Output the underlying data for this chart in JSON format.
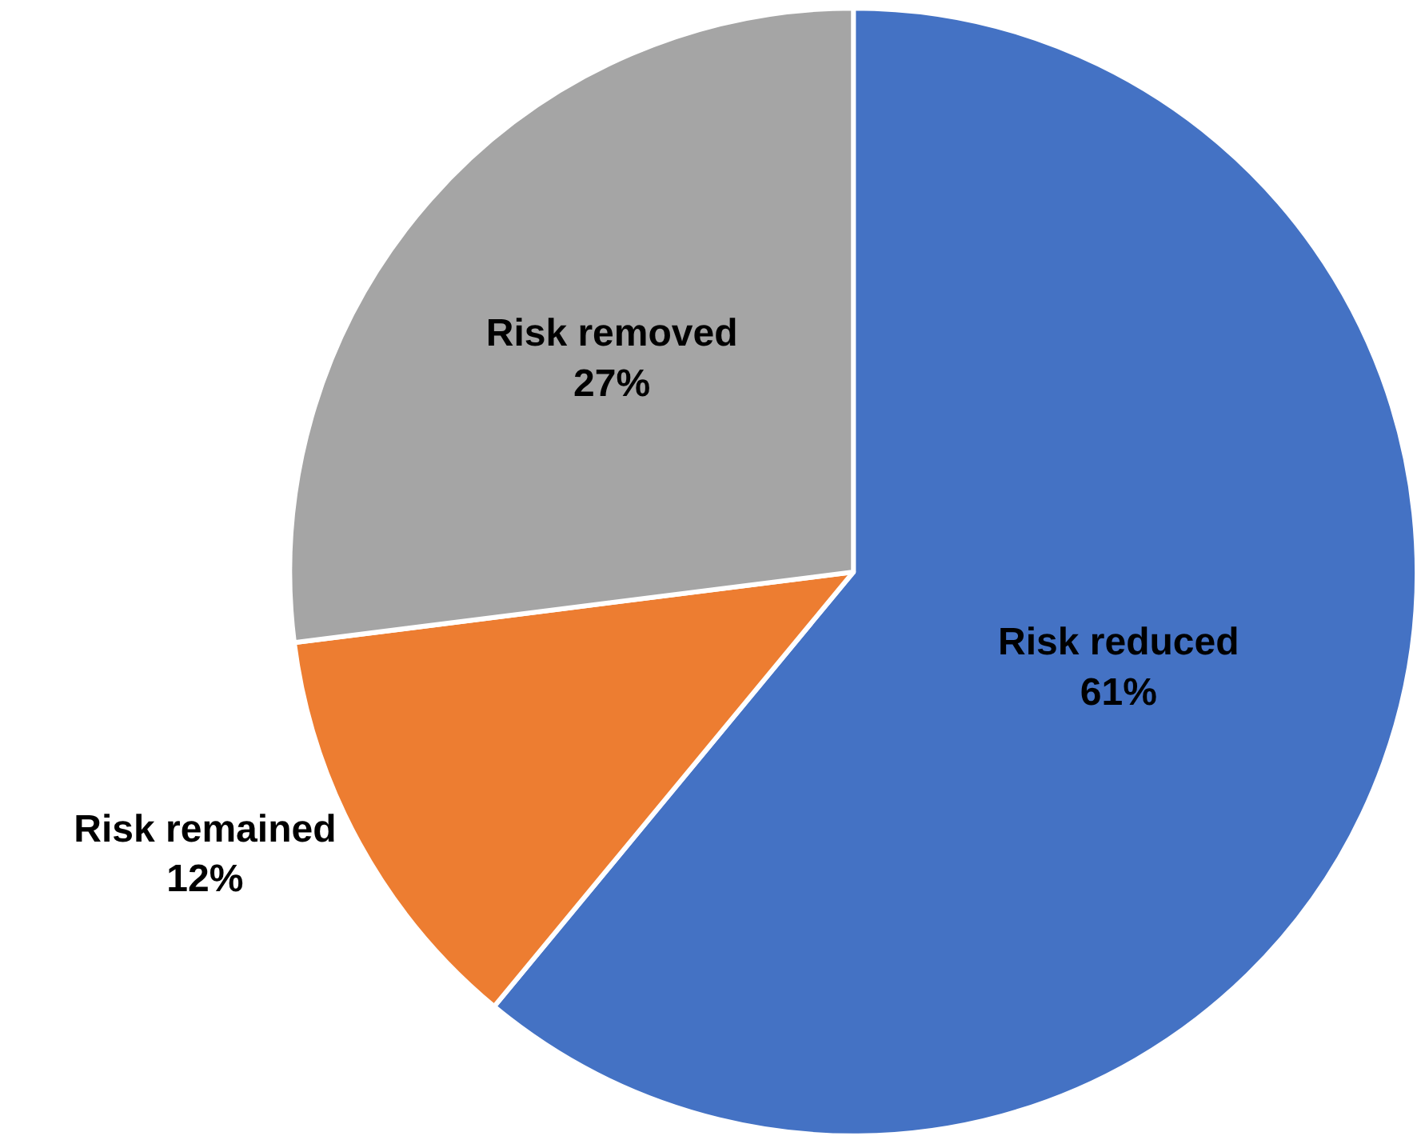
{
  "chart_data": {
    "type": "pie",
    "categories": [
      "Risk reduced",
      "Risk remained",
      "Risk removed"
    ],
    "values": [
      61,
      12,
      27
    ],
    "value_labels": [
      "61%",
      "12%",
      "27%"
    ],
    "colors": [
      "#4472c4",
      "#ed7d31",
      "#a5a5a5"
    ],
    "legend": false
  }
}
